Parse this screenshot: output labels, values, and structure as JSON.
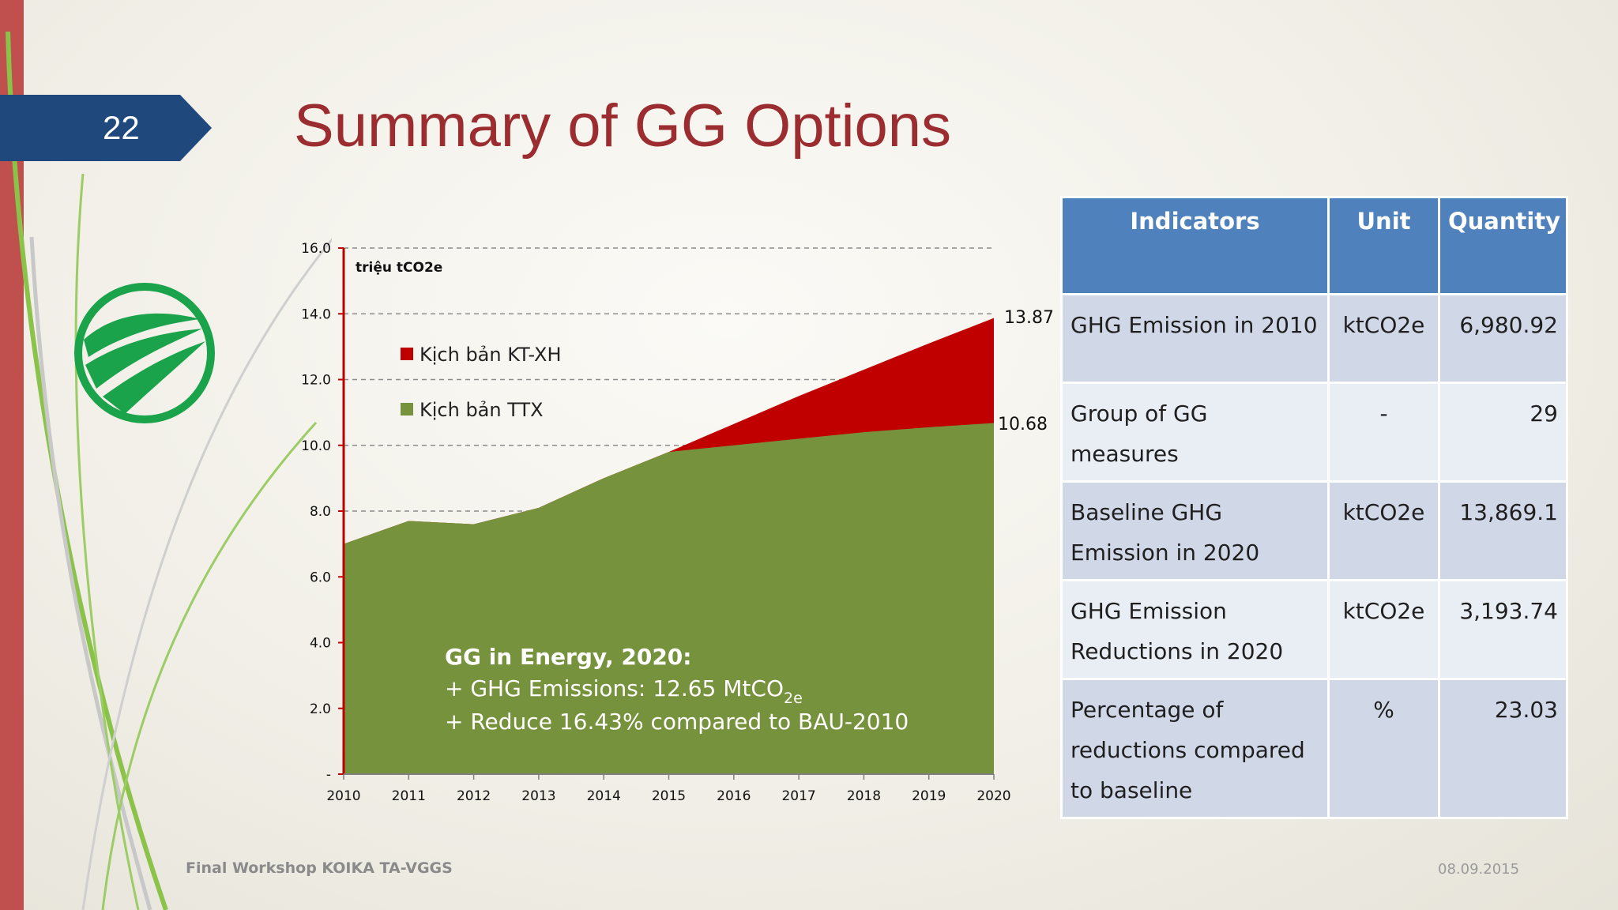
{
  "slide": {
    "number": "22",
    "title": "Summary of GG Options"
  },
  "colors": {
    "accent_red": "#c0504d",
    "title_red": "#9b2d30",
    "number_box_blue": "#1f497d",
    "series_ktxh": "#c00000",
    "series_ttx": "#76923c",
    "table_header": "#4f81bd",
    "table_row_dark": "#d0d8e8",
    "table_row_light": "#e9edf4",
    "logo_green": "#1aa34a"
  },
  "chart_data": {
    "type": "area",
    "title": "",
    "ylabel": "triệu tCO2e",
    "xlabel": "",
    "ylim": [
      0,
      16
    ],
    "yticks": [
      "-",
      "2.0",
      "4.0",
      "6.0",
      "8.0",
      "10.0",
      "12.0",
      "14.0",
      "16.0"
    ],
    "x": [
      "2010",
      "2011",
      "2012",
      "2013",
      "2014",
      "2015",
      "2016",
      "2017",
      "2018",
      "2019",
      "2020"
    ],
    "series": [
      {
        "name": "Kịch bản KT-XH",
        "values": [
          7.0,
          7.7,
          7.6,
          8.1,
          9.0,
          9.8,
          10.65,
          11.5,
          12.3,
          13.1,
          13.87
        ],
        "color": "#c00000"
      },
      {
        "name": "Kịch bản TTX",
        "values": [
          7.0,
          7.7,
          7.6,
          8.1,
          9.0,
          9.8,
          10.0,
          10.2,
          10.4,
          10.55,
          10.68
        ],
        "color": "#76923c"
      }
    ],
    "end_labels": {
      "ktxh": "13.87",
      "ttx": "10.68"
    },
    "annotation": {
      "heading": "GG in Energy, 2020:",
      "line1_prefix": "+ GHG Emissions: 12.65 MtCO",
      "line1_sub": "2e",
      "line2": "+ Reduce 16.43% compared to BAU-2010"
    },
    "gridlines": "dashed",
    "legend_position": "upper-left"
  },
  "table": {
    "headers": {
      "indicator": "Indicators",
      "unit": "Unit",
      "quantity": "Quantity"
    },
    "rows": [
      {
        "indicator": "GHG Emission in 2010",
        "unit": "ktCO2e",
        "quantity": "6,980.92"
      },
      {
        "indicator": "Group of GG measures",
        "unit": "-",
        "quantity": "29"
      },
      {
        "indicator": "Baseline GHG Emission in 2020",
        "unit": "ktCO2e",
        "quantity": "13,869.1"
      },
      {
        "indicator": "GHG Emission Reductions in 2020",
        "unit": "ktCO2e",
        "quantity": "3,193.74"
      },
      {
        "indicator": "Percentage of reductions compared to baseline",
        "unit": "%",
        "quantity": "23.03"
      }
    ]
  },
  "footer": {
    "left": "Final Workshop KOIKA TA-VGGS",
    "right": "08.09.2015"
  }
}
